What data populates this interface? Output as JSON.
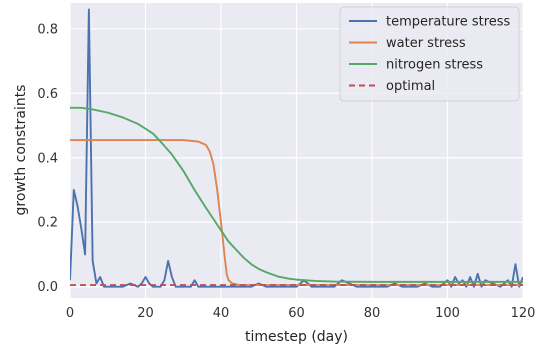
{
  "chart_data": {
    "type": "line",
    "xlabel": "timestep (day)",
    "ylabel": "growth constraints",
    "xlim": [
      0,
      120
    ],
    "ylim": [
      -0.035,
      0.88
    ],
    "x_ticks": [
      0,
      20,
      40,
      60,
      80,
      100,
      120
    ],
    "y_ticks": [
      0.0,
      0.2,
      0.4,
      0.6,
      0.8
    ],
    "x_tick_labels": [
      "0",
      "20",
      "40",
      "60",
      "80",
      "100",
      "120"
    ],
    "y_tick_labels": [
      "0.0",
      "0.2",
      "0.4",
      "0.6",
      "0.8"
    ],
    "grid": true,
    "legend_position": "top-right",
    "background": "#eaeaf2",
    "series": [
      {
        "name": "temperature stress",
        "color": "#4c72b0",
        "style": "solid",
        "x": [
          0,
          1,
          2,
          3,
          4,
          5,
          6,
          7,
          8,
          9,
          10,
          12,
          14,
          16,
          18,
          19,
          20,
          21,
          22,
          24,
          25,
          26,
          27,
          28,
          29,
          30,
          32,
          33,
          34,
          36,
          38,
          40,
          42,
          44,
          46,
          48,
          50,
          52,
          54,
          56,
          58,
          60,
          62,
          64,
          66,
          68,
          70,
          72,
          74,
          76,
          78,
          80,
          82,
          84,
          86,
          88,
          90,
          92,
          94,
          96,
          98,
          100,
          101,
          102,
          103,
          104,
          105,
          106,
          107,
          108,
          109,
          110,
          112,
          114,
          116,
          117,
          118,
          119,
          120
        ],
        "y": [
          0.02,
          0.3,
          0.25,
          0.18,
          0.1,
          0.86,
          0.08,
          0.01,
          0.03,
          0.0,
          0.0,
          0.0,
          0.0,
          0.01,
          0.0,
          0.01,
          0.03,
          0.01,
          0.0,
          0.0,
          0.02,
          0.08,
          0.03,
          0.0,
          0.0,
          0.0,
          0.0,
          0.02,
          0.0,
          0.0,
          0.0,
          0.0,
          0.0,
          0.0,
          0.0,
          0.0,
          0.01,
          0.0,
          0.0,
          0.0,
          0.0,
          0.0,
          0.02,
          0.0,
          0.0,
          0.0,
          0.0,
          0.02,
          0.01,
          0.0,
          0.0,
          0.0,
          0.0,
          0.0,
          0.01,
          0.0,
          0.0,
          0.0,
          0.01,
          0.0,
          0.0,
          0.02,
          0.0,
          0.03,
          0.01,
          0.02,
          0.0,
          0.03,
          0.0,
          0.04,
          0.0,
          0.02,
          0.01,
          0.0,
          0.02,
          0.0,
          0.07,
          0.0,
          0.03
        ]
      },
      {
        "name": "water stress",
        "color": "#dd8452",
        "style": "solid",
        "x": [
          0,
          5,
          10,
          15,
          20,
          25,
          30,
          34,
          36,
          37,
          38,
          39,
          40,
          41,
          41.5,
          42,
          43,
          45,
          50,
          60,
          70,
          80,
          90,
          100,
          110,
          120
        ],
        "y": [
          0.455,
          0.455,
          0.455,
          0.455,
          0.455,
          0.455,
          0.455,
          0.45,
          0.44,
          0.42,
          0.38,
          0.3,
          0.2,
          0.09,
          0.04,
          0.02,
          0.01,
          0.005,
          0.005,
          0.005,
          0.005,
          0.005,
          0.005,
          0.005,
          0.005,
          0.005
        ]
      },
      {
        "name": "nitrogen stress",
        "color": "#55a868",
        "style": "solid",
        "x": [
          0,
          3,
          6,
          10,
          14,
          18,
          22,
          24,
          27,
          30,
          33,
          36,
          38,
          40,
          42,
          44,
          46,
          48,
          50,
          52,
          55,
          58,
          60,
          65,
          70,
          80,
          90,
          100,
          110,
          120
        ],
        "y": [
          0.555,
          0.555,
          0.55,
          0.54,
          0.525,
          0.505,
          0.475,
          0.45,
          0.41,
          0.36,
          0.3,
          0.245,
          0.21,
          0.175,
          0.14,
          0.115,
          0.09,
          0.07,
          0.055,
          0.045,
          0.032,
          0.025,
          0.022,
          0.018,
          0.016,
          0.015,
          0.015,
          0.015,
          0.015,
          0.015
        ]
      },
      {
        "name": "optimal",
        "color": "#c44e52",
        "style": "dashed",
        "x": [
          0,
          120
        ],
        "y": [
          0.005,
          0.005
        ]
      }
    ]
  }
}
